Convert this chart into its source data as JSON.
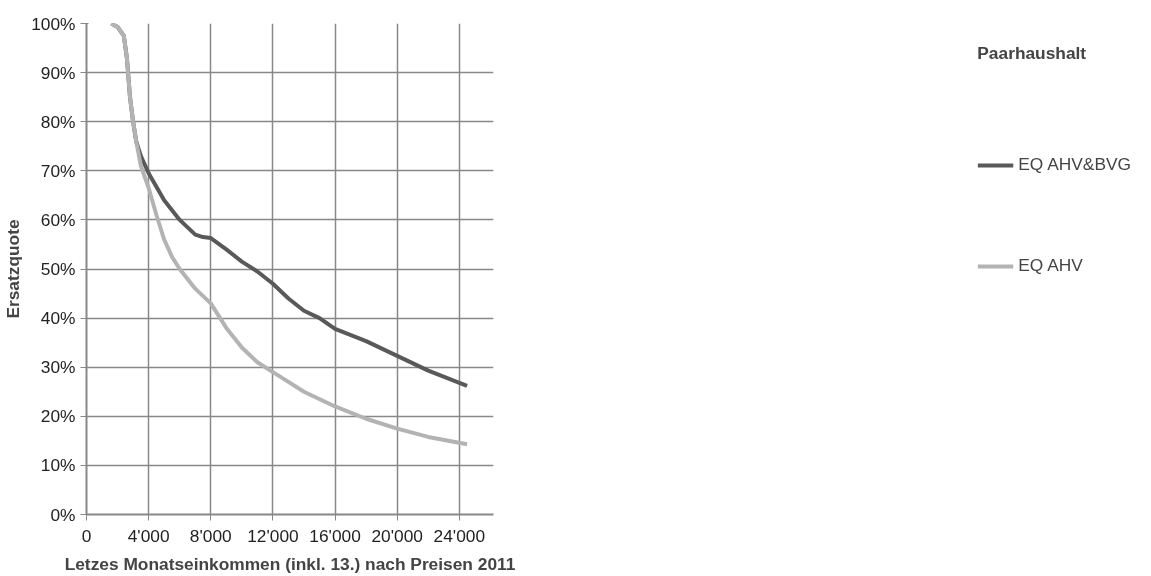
{
  "chart_data": {
    "type": "line",
    "xlabel": "Letzes Monatseinkommen (inkl. 13.) nach Preisen 2011",
    "ylabel": "Ersatzquote",
    "legend_title": "Paarhaushalt",
    "legend": "right",
    "grid": true,
    "marker": "none",
    "line_style": "solid",
    "xlim": [
      0,
      26200
    ],
    "xticks": [
      0,
      {
        "value": 4000,
        "label": "4'000"
      },
      {
        "value": 8000,
        "label": "8'000"
      },
      {
        "value": 12000,
        "label": "12'000"
      },
      {
        "value": 16000,
        "label": "16'000"
      },
      {
        "value": 20000,
        "label": "20'000"
      },
      {
        "value": 24000,
        "label": "24'000"
      }
    ],
    "ylim": [
      0,
      100
    ],
    "yticks": [
      {
        "value": 0,
        "label": "0%"
      },
      {
        "value": 10,
        "label": "10%"
      },
      {
        "value": 20,
        "label": "20%"
      },
      {
        "value": 30,
        "label": "30%"
      },
      {
        "value": 40,
        "label": "40%"
      },
      {
        "value": 50,
        "label": "50%"
      },
      {
        "value": 60,
        "label": "60%"
      },
      {
        "value": 70,
        "label": "70%"
      },
      {
        "value": 80,
        "label": "80%"
      },
      {
        "value": 90,
        "label": "90%"
      },
      {
        "value": 100,
        "label": "100%"
      }
    ],
    "series": [
      {
        "name": "EQ AHV&BVG",
        "color": "#595959",
        "x": [
          1600,
          2000,
          2400,
          2600,
          2800,
          3000,
          3200,
          3500,
          4000,
          5000,
          6000,
          7000,
          7500,
          8000,
          9000,
          10000,
          11000,
          12000,
          13000,
          14000,
          15000,
          16000,
          18000,
          20000,
          22000,
          24500
        ],
        "values": [
          100,
          99.3,
          97.5,
          93,
          85,
          80,
          76,
          73,
          69.5,
          64,
          60,
          57,
          56.5,
          56.3,
          54,
          51.5,
          49.5,
          47,
          44,
          41.5,
          40,
          37.8,
          35.3,
          32.3,
          29.3,
          26.2
        ]
      },
      {
        "name": "EQ AHV",
        "color": "#b3b3b3",
        "x": [
          1600,
          2000,
          2400,
          2600,
          2800,
          3000,
          3200,
          3500,
          4000,
          4500,
          5000,
          5500,
          6000,
          7000,
          8000,
          9000,
          10000,
          11000,
          12000,
          13000,
          14000,
          16000,
          18000,
          20000,
          22000,
          24500
        ],
        "values": [
          100,
          99.3,
          97.5,
          93,
          85,
          80,
          76,
          71,
          66.5,
          61,
          56,
          52.5,
          50,
          46,
          43,
          38,
          34,
          31,
          29,
          27,
          25,
          22,
          19.5,
          17.5,
          15.8,
          14.3
        ]
      }
    ]
  }
}
